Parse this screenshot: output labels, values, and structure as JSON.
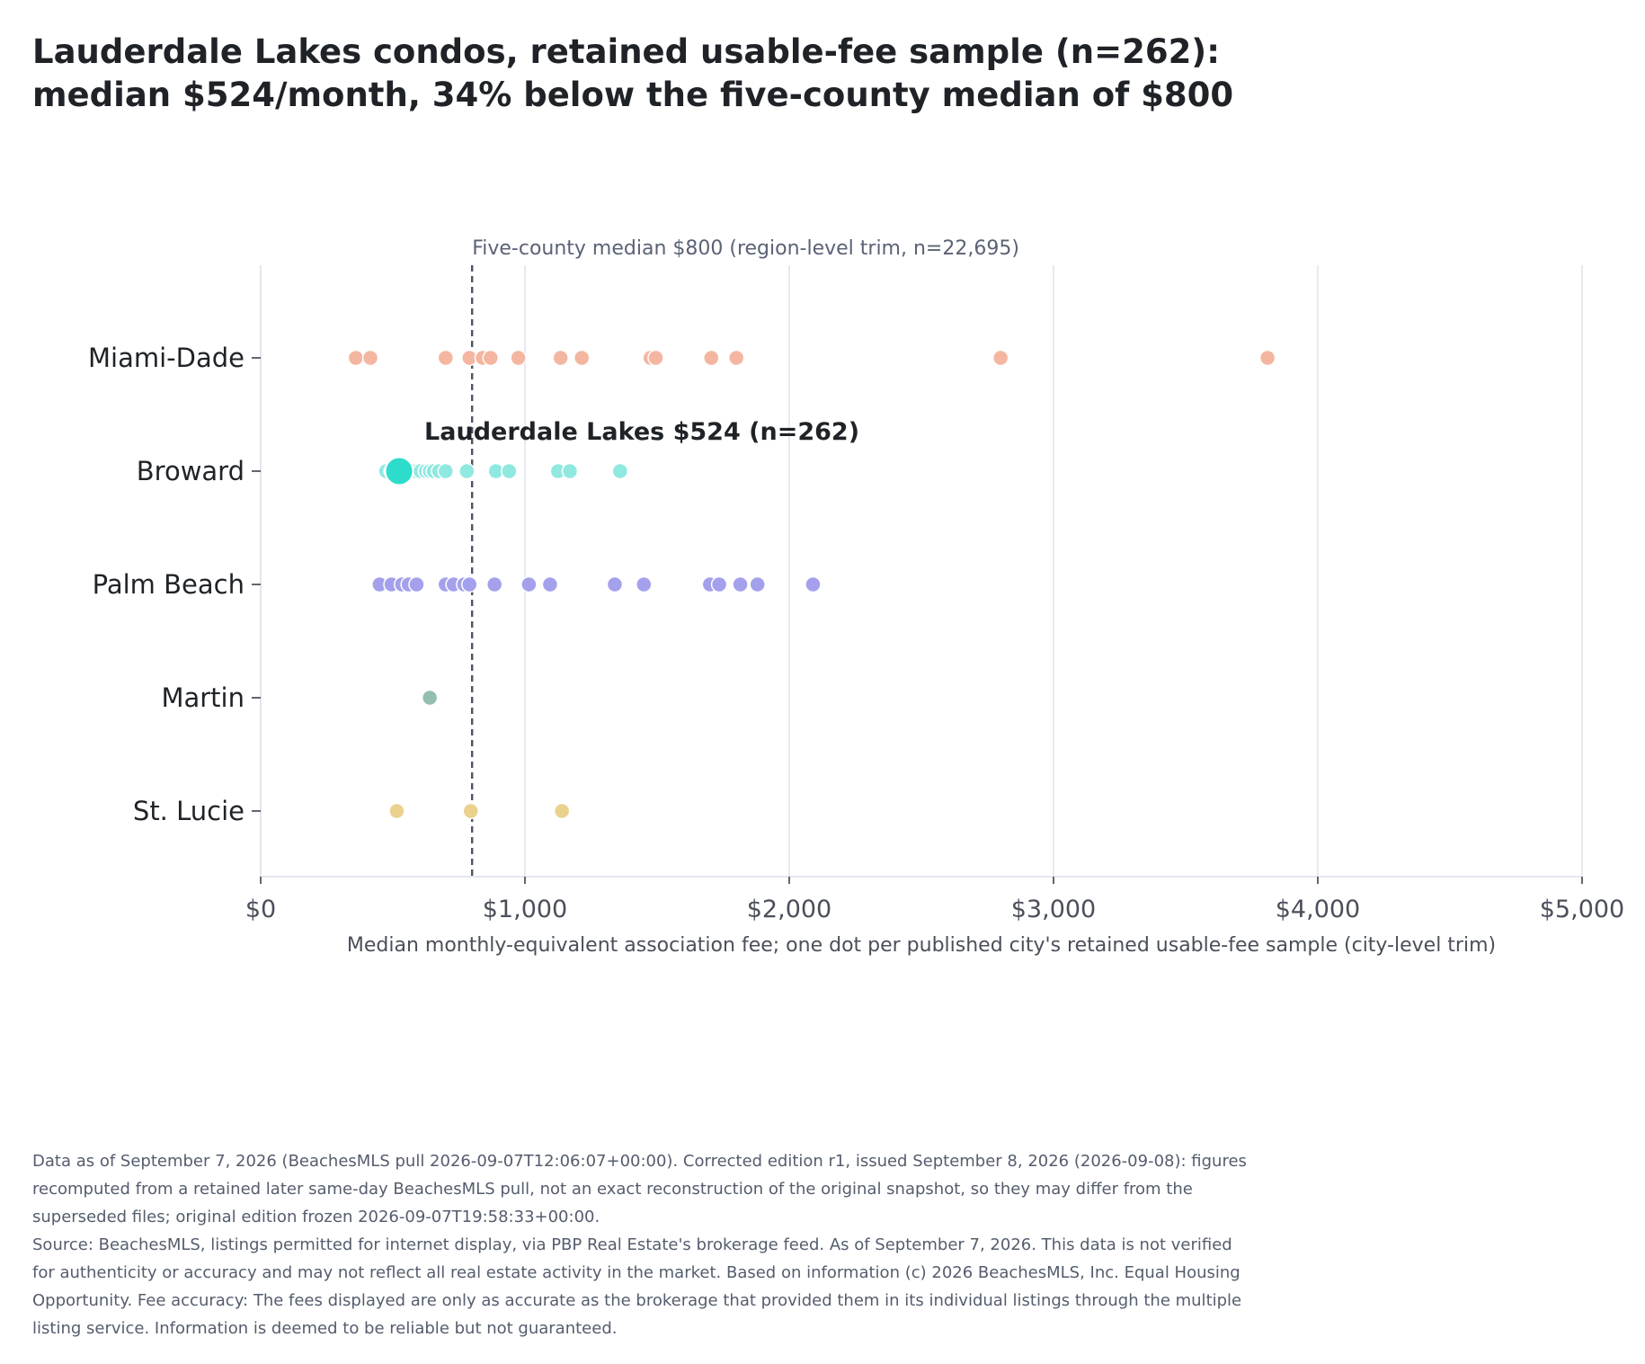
{
  "title_lines": [
    "Lauderdale Lakes condos, retained usable-fee sample (n=262):",
    "median $524/month, 34% below the five-county median of $800"
  ],
  "footnote_lines": [
    "Data as of September 7, 2026 (BeachesMLS pull 2026-09-07T12:06:07+00:00). Corrected edition r1, issued September 8, 2026 (2026-09-08): figures",
    "recomputed from a retained later same-day BeachesMLS pull, not an exact reconstruction of the original snapshot, so they may differ from the",
    "superseded files; original edition frozen 2026-09-07T19:58:33+00:00.",
    "Source: BeachesMLS, listings permitted for internet display, via PBP Real Estate's brokerage feed. As of September 7, 2026. This data is not verified",
    "for authenticity or accuracy and may not reflect all real estate activity in the market. Based on information (c) 2026 BeachesMLS, Inc. Equal Housing",
    "Opportunity. Fee accuracy: The fees displayed are only as accurate as the brokerage that provided them in its individual listings through the multiple",
    "listing service. Information is deemed to be reliable but not guaranteed."
  ],
  "chart_data": {
    "type": "scatter",
    "orientation": "horizontal strip plot",
    "xlabel": "Median monthly-equivalent association fee; one dot per published city's retained usable-fee sample (city-level trim)",
    "xlim": [
      0,
      5000
    ],
    "x_ticks": [
      0,
      1000,
      2000,
      3000,
      4000,
      5000
    ],
    "x_tick_labels": [
      "$0",
      "$1,000",
      "$2,000",
      "$3,000",
      "$4,000",
      "$5,000"
    ],
    "grid": "vertical gridlines at x ticks",
    "categories": [
      "Miami-Dade",
      "Broward",
      "Palm Beach",
      "Martin",
      "St. Lucie"
    ],
    "series": [
      {
        "name": "Miami-Dade",
        "color": "#f4b6a0",
        "values": [
          360,
          415,
          700,
          790,
          840,
          870,
          975,
          1135,
          1215,
          1475,
          1495,
          1705,
          1800,
          2800,
          3810
        ]
      },
      {
        "name": "Broward",
        "color": "#8fe9e1",
        "values": [
          475,
          495,
          510,
          545,
          560,
          570,
          590,
          605,
          625,
          640,
          655,
          675,
          700,
          780,
          890,
          940,
          1125,
          1170,
          1360
        ]
      },
      {
        "name": "Palm Beach",
        "color": "#a5a0ec",
        "values": [
          450,
          495,
          535,
          560,
          590,
          700,
          730,
          770,
          790,
          885,
          1015,
          1095,
          1340,
          1450,
          1700,
          1735,
          1815,
          1880,
          2090
        ]
      },
      {
        "name": "Martin",
        "color": "#93bfae",
        "values": [
          640
        ]
      },
      {
        "name": "St. Lucie",
        "color": "#ead18e",
        "values": [
          515,
          795,
          1140
        ]
      }
    ],
    "highlight": {
      "category": "Broward",
      "value": 524,
      "color": "#2ddccb",
      "label": "Lauderdale Lakes $524 (n=262)"
    },
    "reference_line": {
      "value": 800,
      "style": "dashed",
      "color": "#4c5566",
      "label": "Five-county median $800 (region-level trim, n=22,695)"
    }
  }
}
